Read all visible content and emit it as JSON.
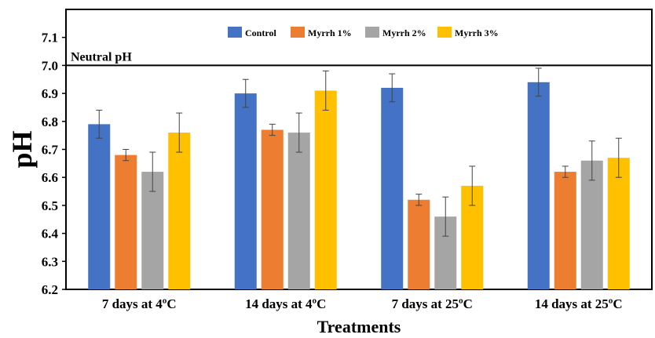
{
  "chart_data": {
    "type": "bar",
    "categories": [
      "7 days at 4ºC",
      "14 days at 4ºC",
      "7 days at 25ºC",
      "14 days at 25ºC"
    ],
    "series": [
      {
        "name": "Control",
        "color": "#4472C4",
        "values": [
          6.79,
          6.9,
          6.92,
          6.94
        ],
        "errors": [
          0.05,
          0.05,
          0.05,
          0.05
        ]
      },
      {
        "name": "Myrrh 1%",
        "color": "#ED7D31",
        "values": [
          6.68,
          6.77,
          6.52,
          6.62
        ],
        "errors": [
          0.02,
          0.02,
          0.02,
          0.02
        ]
      },
      {
        "name": "Myrrh 2%",
        "color": "#A5A5A5",
        "values": [
          6.62,
          6.76,
          6.46,
          6.66
        ],
        "errors": [
          0.07,
          0.07,
          0.07,
          0.07
        ]
      },
      {
        "name": "Myrrh 3%",
        "color": "#FFC000",
        "values": [
          6.76,
          6.91,
          6.57,
          6.67
        ],
        "errors": [
          0.07,
          0.07,
          0.07,
          0.07
        ]
      }
    ],
    "xlabel": "Treatments",
    "ylabel": "pH",
    "ylim": [
      6.2,
      7.2
    ],
    "yticks": [
      "6.2",
      "6.3",
      "6.4",
      "6.5",
      "6.6",
      "6.7",
      "6.8",
      "6.9",
      "7.0",
      "7.1"
    ],
    "reference_line": {
      "value": 7.0,
      "label": "Neutral pH"
    },
    "legend_position": "top-center",
    "grid": false
  }
}
